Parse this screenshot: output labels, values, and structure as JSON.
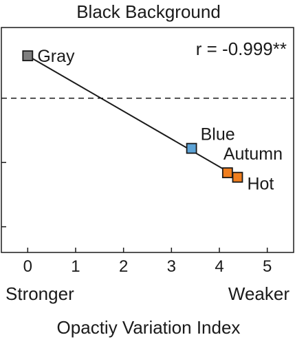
{
  "chart_data": {
    "type": "scatter",
    "title": "Black Background",
    "xlabel": "Opactiy Variation Index",
    "ylabel": "",
    "xlim": [
      -0.55,
      5.55
    ],
    "ylim": [
      0,
      3.5
    ],
    "x_ticks": [
      "0",
      "1",
      "2",
      "3",
      "4",
      "5"
    ],
    "x_tick_values": [
      0,
      1,
      2,
      3,
      4,
      5
    ],
    "y_tick_values": [
      0.4,
      1.4
    ],
    "x_end_labels": {
      "low": "Stronger",
      "high": "Weaker"
    },
    "annotation": "r = -0.999**",
    "reference_line_y": 2.4,
    "points": [
      {
        "label": "Gray",
        "x": 0.0,
        "y": 3.06,
        "color": "#7f7f7f"
      },
      {
        "label": "Blue",
        "x": 3.42,
        "y": 1.62,
        "color": "#5da3d6"
      },
      {
        "label": "Autumn",
        "x": 4.17,
        "y": 1.24,
        "color": "#f07e1e"
      },
      {
        "label": "Hot",
        "x": 4.38,
        "y": 1.17,
        "color": "#f07e1e"
      }
    ],
    "fit_line": {
      "x": [
        0.0,
        4.38
      ],
      "y": [
        3.06,
        1.17
      ]
    },
    "grid": false
  }
}
